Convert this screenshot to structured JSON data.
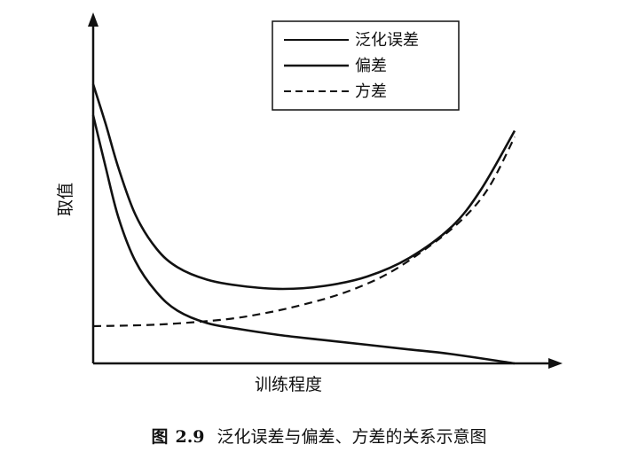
{
  "caption": {
    "label": "图",
    "number": "2.9",
    "text": "泛化误差与偏差、方差的关系示意图"
  },
  "chart_data": {
    "type": "line",
    "title": "",
    "xlabel": "训练程度",
    "ylabel": "取值",
    "xlim": [
      0,
      1
    ],
    "ylim": [
      0,
      1
    ],
    "grid": false,
    "legend_position": "top-right",
    "series": [
      {
        "name": "泛化误差",
        "style": "solid",
        "color": "#111111",
        "x": [
          0.0,
          0.03,
          0.06,
          0.1,
          0.15,
          0.2,
          0.27,
          0.35,
          0.45,
          0.55,
          0.65,
          0.75,
          0.85,
          0.92,
          1.0
        ],
        "y": [
          0.9,
          0.77,
          0.63,
          0.48,
          0.37,
          0.31,
          0.27,
          0.25,
          0.24,
          0.25,
          0.28,
          0.34,
          0.44,
          0.56,
          0.75
        ]
      },
      {
        "name": "偏差",
        "style": "solid",
        "color": "#111111",
        "x": [
          0.0,
          0.03,
          0.06,
          0.1,
          0.15,
          0.2,
          0.27,
          0.35,
          0.45,
          0.55,
          0.65,
          0.75,
          0.85,
          1.0
        ],
        "y": [
          0.8,
          0.63,
          0.47,
          0.33,
          0.23,
          0.17,
          0.13,
          0.11,
          0.09,
          0.075,
          0.06,
          0.045,
          0.03,
          0.0
        ]
      },
      {
        "name": "方差",
        "style": "dashed",
        "color": "#111111",
        "x": [
          0.0,
          0.15,
          0.3,
          0.4,
          0.5,
          0.6,
          0.7,
          0.8,
          0.88,
          0.94,
          1.0
        ],
        "y": [
          0.12,
          0.125,
          0.14,
          0.16,
          0.19,
          0.23,
          0.29,
          0.38,
          0.47,
          0.57,
          0.73
        ]
      }
    ]
  }
}
